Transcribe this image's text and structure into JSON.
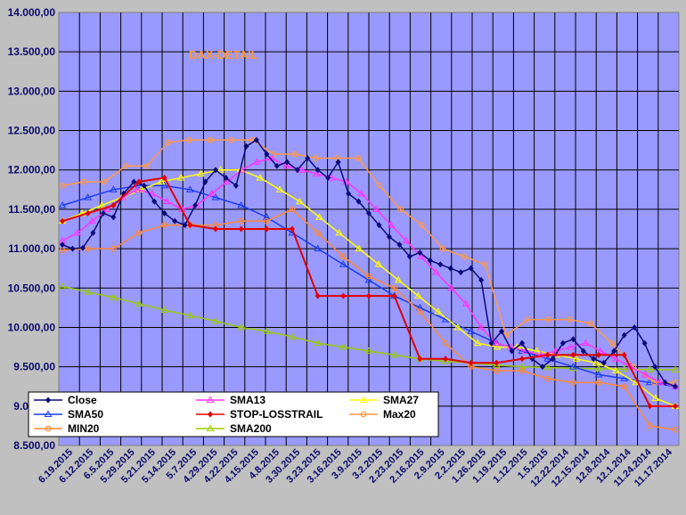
{
  "chart_data": {
    "type": "line",
    "title": "DAX-DETAIL",
    "ylim": [
      8500,
      14000
    ],
    "y_ticks": [
      "14.000,00",
      "13.500,00",
      "13.000,00",
      "12.500,00",
      "12.000,00",
      "11.500,00",
      "11.000,00",
      "10.500,00",
      "10.000,00",
      "9.500,00",
      "9.000,00",
      "8.500,00"
    ],
    "x_ticks": [
      "6.19.2015",
      "6.12.2015",
      "6.5.2015",
      "5.29.2015",
      "5.21.2015",
      "5.14.2015",
      "5.7.2015",
      "4.29.2015",
      "4.22.2015",
      "4.15.2015",
      "4.8.2015",
      "3.30.2015",
      "3.23.2015",
      "3.16.2015",
      "3.9.2015",
      "3.2.2015",
      "2.23.2015",
      "2.16.2015",
      "2.9.2015",
      "2.2.2015",
      "1.26.2015",
      "1.19.2015",
      "1.12.2015",
      "1.5.2015",
      "12.22.2014",
      "12.15.2014",
      "12.8.2014",
      "12.1.2014",
      "11.24.2014",
      "11.17.2014"
    ],
    "grid": true,
    "legend_position": "bottom-left",
    "series": [
      {
        "name": "Close",
        "color": "#0a0a7a",
        "marker": "diamond",
        "values": [
          11050,
          11000,
          11010,
          11200,
          11450,
          11400,
          11700,
          11850,
          11800,
          11600,
          11450,
          11350,
          11300,
          11550,
          11850,
          12000,
          11900,
          11800,
          12300,
          12380,
          12200,
          12050,
          12100,
          12000,
          12150,
          12000,
          11900,
          12100,
          11700,
          11600,
          11450,
          11300,
          11150,
          11050,
          10900,
          10950,
          10850,
          10800,
          10750,
          10700,
          10750,
          10600,
          9800,
          9950,
          9700,
          9800,
          9600,
          9500,
          9600,
          9800,
          9850,
          9700,
          9600,
          9550,
          9700,
          9900,
          10000,
          9800,
          9500,
          9300,
          9250
        ]
      },
      {
        "name": "SMA13",
        "color": "#ff33ff",
        "marker": "triangle",
        "values": [
          11100,
          11200,
          11350,
          11500,
          11650,
          11750,
          11700,
          11600,
          11500,
          11550,
          11700,
          11850,
          12000,
          12100,
          12150,
          12050,
          12000,
          11950,
          11900,
          11850,
          11700,
          11500,
          11300,
          11100,
          10900,
          10700,
          10500,
          10300,
          10000,
          9800,
          9750,
          9700,
          9650,
          9700,
          9750,
          9800,
          9700,
          9600,
          9500,
          9400,
          9300,
          9250
        ]
      },
      {
        "name": "SMA27",
        "color": "#ffff00",
        "marker": "triangle",
        "values": [
          11350,
          11450,
          11550,
          11650,
          11750,
          11850,
          11900,
          11950,
          12000,
          12000,
          11900,
          11750,
          11600,
          11400,
          11200,
          11000,
          10800,
          10600,
          10400,
          10200,
          10000,
          9800,
          9750,
          9750,
          9700,
          9650,
          9600,
          9550,
          9450,
          9300,
          9100,
          9000
        ]
      },
      {
        "name": "SMA50",
        "color": "#1a3cf0",
        "marker": "triangle",
        "values": [
          11550,
          11650,
          11750,
          11800,
          11800,
          11750,
          11650,
          11550,
          11400,
          11200,
          11000,
          10800,
          10600,
          10400,
          10250,
          10100,
          9950,
          9800,
          9700,
          9600,
          9500,
          9400,
          9350,
          9300,
          9250
        ]
      },
      {
        "name": "STOP-LOSSTRAIL",
        "color": "#e00000",
        "marker": "diamond",
        "values": [
          11350,
          11450,
          11550,
          11850,
          11900,
          11300,
          11250,
          11250,
          11250,
          11250,
          10400,
          10400,
          10400,
          10400,
          9600,
          9600,
          9550,
          9550,
          9600,
          9650,
          9650,
          9650,
          9650,
          9000,
          9000
        ]
      },
      {
        "name": "Max20",
        "color": "#ff9944",
        "marker": "circle",
        "values": [
          11800,
          11850,
          11850,
          12050,
          12050,
          12350,
          12380,
          12380,
          12380,
          12380,
          12200,
          12200,
          12150,
          12150,
          12150,
          11800,
          11500,
          11300,
          11000,
          10900,
          10800,
          9900,
          10100,
          10100,
          10100,
          10050,
          9800,
          9500,
          9300,
          9300
        ]
      },
      {
        "name": "MIN20",
        "color": "#ff8833",
        "marker": "circle",
        "values": [
          10980,
          11000,
          11000,
          11200,
          11300,
          11300,
          11300,
          11350,
          11350,
          11500,
          11200,
          10900,
          10650,
          10500,
          10200,
          9800,
          9500,
          9450,
          9450,
          9350,
          9300,
          9300,
          9250,
          8750,
          8700
        ]
      },
      {
        "name": "SMA200",
        "color": "#99cc00",
        "marker": "triangle",
        "values": [
          10520,
          10450,
          10380,
          10300,
          10220,
          10150,
          10080,
          10000,
          9950,
          9880,
          9800,
          9750,
          9700,
          9650,
          9600,
          9570,
          9550,
          9520,
          9500,
          9490,
          9480,
          9475,
          9470,
          9465,
          9460
        ]
      }
    ]
  }
}
